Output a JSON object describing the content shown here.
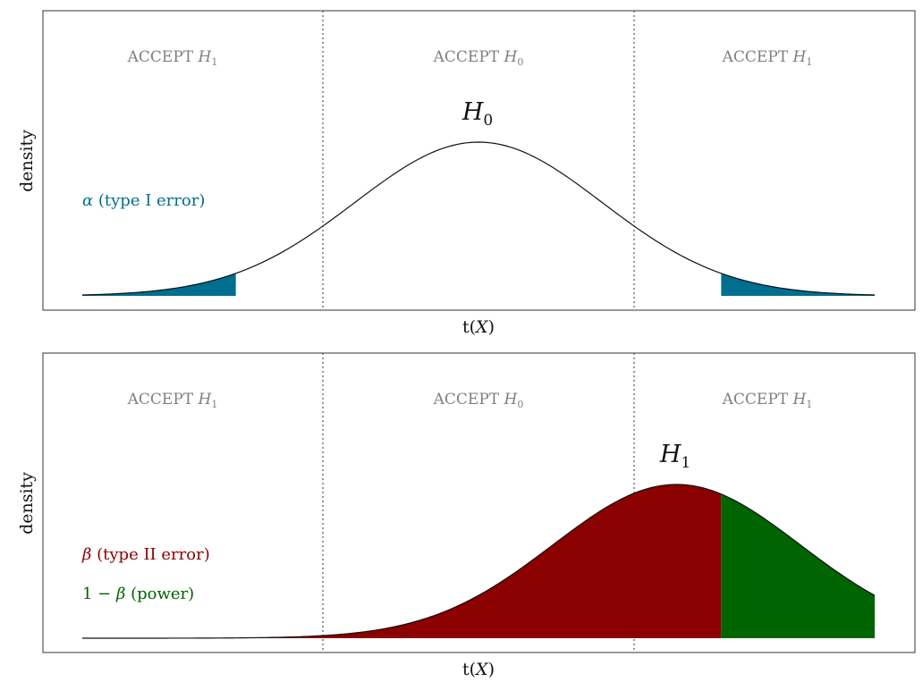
{
  "colors": {
    "alpha": "#006e8f",
    "beta": "#8b0000",
    "power": "#006400",
    "region_text": "#7f7f7f",
    "curve": "#111111"
  },
  "chart_data": [
    {
      "type": "area",
      "curve": {
        "name": "H",
        "subscript": "0",
        "mean": 0,
        "sd": 1
      },
      "critical_values": [
        -1.96,
        1.96
      ],
      "xlim": [
        -3.2,
        3.2
      ],
      "regions": [
        {
          "text": "ACCEPT ",
          "var": "H",
          "sub": "1"
        },
        {
          "text": "ACCEPT ",
          "var": "H",
          "sub": "0"
        },
        {
          "text": "ACCEPT ",
          "var": "H",
          "sub": "1"
        }
      ],
      "annotations": [
        {
          "symbol": "α",
          "text": " (type I error)",
          "color": "#006e8f"
        }
      ],
      "xlabel": {
        "pre": "t(",
        "var": "X",
        "post": ")"
      },
      "ylabel": "density"
    },
    {
      "type": "area",
      "curve": {
        "name": "H",
        "subscript": "1",
        "mean": 1.6,
        "sd": 1
      },
      "critical_values": [
        -1.96,
        1.96
      ],
      "xlim": [
        -3.2,
        3.2
      ],
      "regions": [
        {
          "text": "ACCEPT ",
          "var": "H",
          "sub": "1"
        },
        {
          "text": "ACCEPT ",
          "var": "H",
          "sub": "0"
        },
        {
          "text": "ACCEPT ",
          "var": "H",
          "sub": "1"
        }
      ],
      "annotations": [
        {
          "symbol": "β",
          "text": " (type II error)",
          "color": "#8b0000"
        },
        {
          "pre": "1 − ",
          "symbol": "β",
          "text": " (power)",
          "color": "#006400"
        }
      ],
      "xlabel": {
        "pre": "t(",
        "var": "X",
        "post": ")"
      },
      "ylabel": "density"
    }
  ]
}
